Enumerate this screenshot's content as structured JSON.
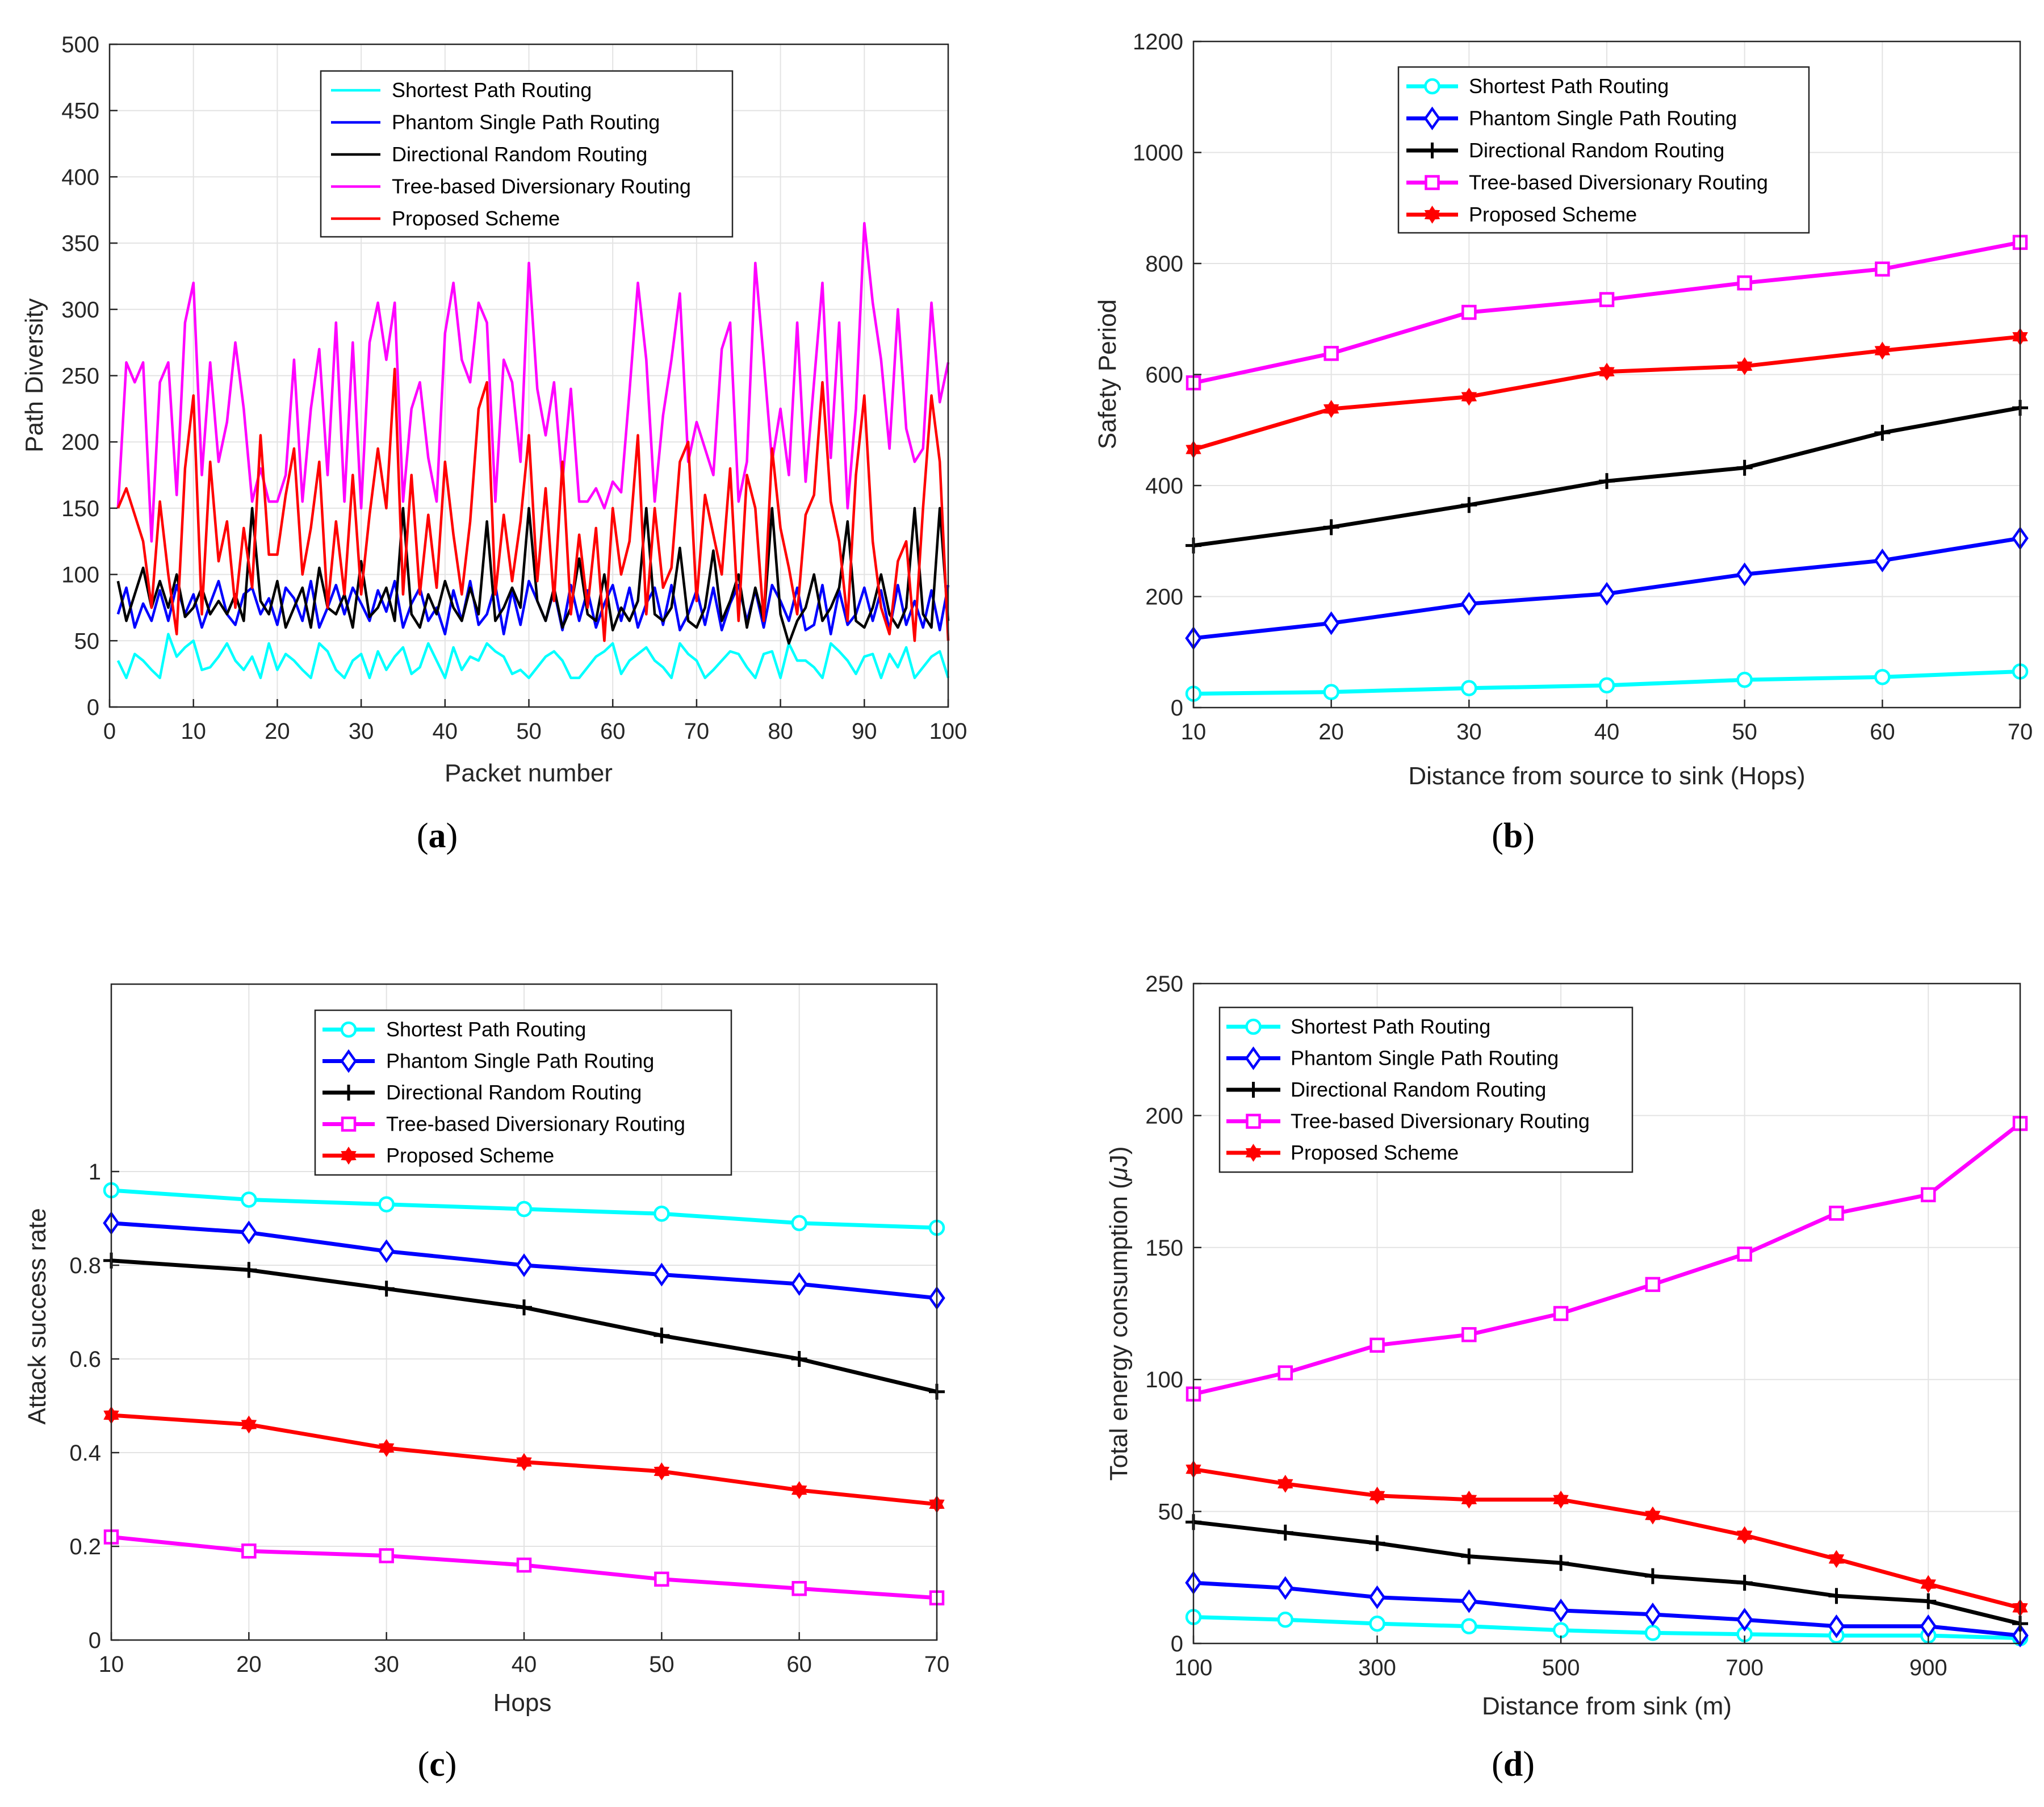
{
  "colors": {
    "shortest": "#00ffff",
    "phantom": "#0000ff",
    "directional": "#000000",
    "tree": "#ff00ff",
    "proposed": "#ff0000"
  },
  "chart_data": [
    {
      "id": "a",
      "type": "line",
      "caption_letter": "a",
      "xlabel": "Packet number",
      "ylabel": "Path Diversity",
      "xlim": [
        0,
        100
      ],
      "ylim": [
        0,
        500
      ],
      "xticks": [
        0,
        10,
        20,
        30,
        40,
        50,
        60,
        70,
        80,
        90,
        100
      ],
      "yticks": [
        0,
        50,
        100,
        150,
        200,
        250,
        300,
        350,
        400,
        450,
        500
      ],
      "legend": "top-center",
      "x": [
        1,
        2,
        3,
        4,
        5,
        6,
        7,
        8,
        9,
        10,
        11,
        12,
        13,
        14,
        15,
        16,
        17,
        18,
        19,
        20,
        21,
        22,
        23,
        24,
        25,
        26,
        27,
        28,
        29,
        30,
        31,
        32,
        33,
        34,
        35,
        36,
        37,
        38,
        39,
        40,
        41,
        42,
        43,
        44,
        45,
        46,
        47,
        48,
        49,
        50,
        51,
        52,
        53,
        54,
        55,
        56,
        57,
        58,
        59,
        60,
        61,
        62,
        63,
        64,
        65,
        66,
        67,
        68,
        69,
        70,
        71,
        72,
        73,
        74,
        75,
        76,
        77,
        78,
        79,
        80,
        81,
        82,
        83,
        84,
        85,
        86,
        87,
        88,
        89,
        90,
        91,
        92,
        93,
        94,
        95,
        96,
        97,
        98,
        99,
        100
      ],
      "series": [
        {
          "name": "Shortest Path Routing",
          "key": "shortest",
          "marker": "none",
          "values": [
            35,
            22,
            40,
            35,
            28,
            22,
            55,
            38,
            45,
            50,
            28,
            30,
            38,
            48,
            35,
            28,
            38,
            22,
            48,
            28,
            40,
            35,
            28,
            22,
            48,
            42,
            28,
            22,
            35,
            40,
            22,
            42,
            28,
            38,
            45,
            25,
            30,
            48,
            35,
            22,
            45,
            28,
            38,
            35,
            48,
            42,
            38,
            25,
            28,
            22,
            30,
            38,
            42,
            35,
            22,
            22,
            30,
            38,
            42,
            48,
            25,
            35,
            40,
            45,
            35,
            30,
            22,
            48,
            40,
            35,
            22,
            28,
            35,
            42,
            40,
            30,
            22,
            40,
            42,
            22,
            48,
            35,
            35,
            30,
            22,
            48,
            42,
            35,
            25,
            38,
            40,
            22,
            40,
            30,
            45,
            22,
            30,
            38,
            42,
            22
          ]
        },
        {
          "name": "Phantom Single Path Routing",
          "key": "phantom",
          "marker": "none",
          "values": [
            70,
            90,
            60,
            78,
            65,
            88,
            65,
            92,
            70,
            85,
            60,
            78,
            95,
            70,
            62,
            85,
            90,
            70,
            82,
            62,
            90,
            82,
            65,
            95,
            60,
            75,
            92,
            70,
            90,
            78,
            65,
            88,
            72,
            95,
            60,
            78,
            90,
            65,
            75,
            55,
            88,
            65,
            95,
            62,
            70,
            92,
            55,
            88,
            62,
            95,
            80,
            65,
            88,
            58,
            92,
            65,
            88,
            60,
            78,
            92,
            65,
            90,
            60,
            78,
            90,
            62,
            92,
            58,
            70,
            88,
            62,
            90,
            58,
            78,
            92,
            65,
            88,
            60,
            92,
            80,
            65,
            90,
            58,
            62,
            92,
            55,
            88,
            62,
            70,
            90,
            65,
            88,
            58,
            92,
            62,
            80,
            60,
            88,
            58,
            92
          ]
        },
        {
          "name": "Directional Random Routing",
          "key": "directional",
          "marker": "none",
          "values": [
            95,
            65,
            85,
            105,
            75,
            95,
            75,
            100,
            68,
            75,
            90,
            70,
            80,
            70,
            85,
            65,
            150,
            80,
            70,
            95,
            60,
            75,
            90,
            60,
            105,
            75,
            70,
            85,
            60,
            110,
            68,
            75,
            90,
            65,
            150,
            70,
            60,
            85,
            70,
            95,
            75,
            65,
            90,
            70,
            140,
            65,
            75,
            90,
            75,
            150,
            80,
            65,
            90,
            60,
            75,
            112,
            70,
            65,
            100,
            58,
            75,
            65,
            80,
            150,
            70,
            65,
            75,
            120,
            65,
            60,
            75,
            118,
            65,
            80,
            100,
            60,
            90,
            65,
            150,
            70,
            48,
            65,
            75,
            100,
            65,
            75,
            90,
            140,
            65,
            60,
            75,
            100,
            70,
            60,
            75,
            150,
            70,
            60,
            150,
            65
          ]
        },
        {
          "name": "Tree-based Diversionary Routing",
          "key": "tree",
          "marker": "none",
          "values": [
            150,
            260,
            245,
            260,
            125,
            245,
            260,
            160,
            290,
            320,
            175,
            260,
            185,
            215,
            275,
            225,
            155,
            180,
            155,
            155,
            175,
            262,
            155,
            225,
            270,
            175,
            290,
            155,
            275,
            150,
            275,
            305,
            262,
            305,
            155,
            225,
            245,
            188,
            155,
            282,
            320,
            262,
            245,
            305,
            290,
            155,
            262,
            245,
            185,
            335,
            240,
            205,
            245,
            170,
            240,
            155,
            155,
            165,
            150,
            170,
            162,
            238,
            320,
            262,
            155,
            220,
            262,
            312,
            185,
            215,
            195,
            175,
            270,
            290,
            155,
            185,
            335,
            262,
            185,
            225,
            175,
            290,
            170,
            245,
            320,
            188,
            290,
            150,
            225,
            365,
            305,
            262,
            195,
            300,
            210,
            185,
            195,
            305,
            230,
            260
          ]
        },
        {
          "name": "Proposed Scheme",
          "key": "proposed",
          "marker": "none",
          "values": [
            150,
            165,
            145,
            125,
            75,
            155,
            100,
            55,
            180,
            235,
            70,
            185,
            110,
            140,
            75,
            135,
            90,
            205,
            115,
            115,
            160,
            195,
            100,
            135,
            185,
            75,
            140,
            85,
            175,
            85,
            145,
            195,
            150,
            255,
            85,
            175,
            85,
            145,
            90,
            185,
            130,
            85,
            140,
            225,
            245,
            85,
            145,
            95,
            140,
            205,
            95,
            165,
            80,
            185,
            70,
            130,
            75,
            135,
            50,
            150,
            100,
            125,
            205,
            70,
            150,
            90,
            105,
            185,
            200,
            80,
            160,
            130,
            100,
            180,
            65,
            175,
            150,
            65,
            195,
            135,
            105,
            70,
            145,
            160,
            245,
            155,
            125,
            65,
            175,
            235,
            125,
            75,
            55,
            110,
            125,
            50,
            150,
            235,
            185,
            50
          ]
        }
      ]
    },
    {
      "id": "b",
      "type": "line",
      "caption_letter": "b",
      "xlabel": "Distance from source to sink (Hops)",
      "ylabel": "Safety Period",
      "xlim": [
        10,
        70
      ],
      "ylim": [
        0,
        1200
      ],
      "xticks": [
        10,
        20,
        30,
        40,
        50,
        60,
        70
      ],
      "yticks": [
        0,
        200,
        400,
        600,
        800,
        1000,
        1200
      ],
      "legend": "top-left",
      "x": [
        10,
        20,
        30,
        40,
        50,
        60,
        70
      ],
      "series": [
        {
          "name": "Shortest Path Routing",
          "key": "shortest",
          "marker": "circle",
          "values": [
            25,
            28,
            35,
            40,
            50,
            55,
            65
          ]
        },
        {
          "name": "Phantom Single Path Routing",
          "key": "phantom",
          "marker": "diamond",
          "values": [
            125,
            152,
            187,
            205,
            240,
            265,
            305
          ]
        },
        {
          "name": "Directional Random Routing",
          "key": "directional",
          "marker": "plus",
          "values": [
            292,
            325,
            365,
            408,
            432,
            495,
            540
          ]
        },
        {
          "name": "Tree-based Diversionary Routing",
          "key": "tree",
          "marker": "square",
          "values": [
            585,
            638,
            712,
            735,
            765,
            790,
            838
          ]
        },
        {
          "name": "Proposed Scheme",
          "key": "proposed",
          "marker": "hexagram",
          "values": [
            465,
            538,
            560,
            605,
            615,
            643,
            668
          ]
        }
      ]
    },
    {
      "id": "c",
      "type": "line",
      "caption_letter": "c",
      "xlabel": "Hops",
      "ylabel": "Attack success rate",
      "xlim": [
        10,
        70
      ],
      "ylim": [
        0,
        1.4
      ],
      "xticks": [
        10,
        20,
        30,
        40,
        50,
        60,
        70
      ],
      "yticks": [
        0,
        0.2,
        0.4,
        0.6,
        0.8,
        1
      ],
      "legend": "top-center",
      "x": [
        10,
        20,
        30,
        40,
        50,
        60,
        70
      ],
      "series": [
        {
          "name": "Shortest Path Routing",
          "key": "shortest",
          "marker": "circle",
          "values": [
            0.96,
            0.94,
            0.93,
            0.92,
            0.91,
            0.89,
            0.88
          ]
        },
        {
          "name": "Phantom Single Path Routing",
          "key": "phantom",
          "marker": "diamond",
          "values": [
            0.89,
            0.87,
            0.83,
            0.8,
            0.78,
            0.76,
            0.73
          ]
        },
        {
          "name": "Directional Random Routing",
          "key": "directional",
          "marker": "plus",
          "values": [
            0.81,
            0.79,
            0.75,
            0.71,
            0.65,
            0.6,
            0.53
          ]
        },
        {
          "name": "Tree-based Diversionary Routing",
          "key": "tree",
          "marker": "square",
          "values": [
            0.22,
            0.19,
            0.18,
            0.16,
            0.13,
            0.11,
            0.09
          ]
        },
        {
          "name": "Proposed Scheme",
          "key": "proposed",
          "marker": "hexagram",
          "values": [
            0.48,
            0.46,
            0.41,
            0.38,
            0.36,
            0.32,
            0.29
          ]
        }
      ]
    },
    {
      "id": "d",
      "type": "line",
      "caption_letter": "d",
      "xlabel": "Distance from sink (m)",
      "ylabel_pre": "Total energy consumption (",
      "ylabel_mu": "μ",
      "ylabel_post": "J)",
      "xlim": [
        100,
        1000
      ],
      "ylim": [
        0,
        250
      ],
      "xticks": [
        100,
        300,
        500,
        700,
        900
      ],
      "yticks": [
        0,
        50,
        100,
        150,
        200,
        250
      ],
      "legend": "top-left",
      "x": [
        100,
        200,
        300,
        400,
        500,
        600,
        700,
        800,
        900,
        1000
      ],
      "series": [
        {
          "name": "Shortest Path Routing",
          "key": "shortest",
          "marker": "circle",
          "values": [
            10,
            9,
            7.5,
            6.5,
            5,
            4,
            3.5,
            3,
            3,
            2
          ]
        },
        {
          "name": "Phantom Single Path Routing",
          "key": "phantom",
          "marker": "diamond",
          "values": [
            23,
            21,
            17.5,
            16,
            12.5,
            11,
            9,
            6.5,
            6.5,
            3
          ]
        },
        {
          "name": "Directional Random Routing",
          "key": "directional",
          "marker": "plus",
          "values": [
            46,
            42,
            38,
            33,
            30.5,
            25.5,
            23,
            18,
            16,
            7.5
          ]
        },
        {
          "name": "Tree-based Diversionary Routing",
          "key": "tree",
          "marker": "square",
          "values": [
            94.5,
            102.5,
            113,
            117,
            125,
            136,
            147.5,
            163,
            170,
            197
          ]
        },
        {
          "name": "Proposed Scheme",
          "key": "proposed",
          "marker": "hexagram",
          "values": [
            66,
            60.5,
            56,
            54.5,
            54.5,
            48.5,
            41,
            32,
            22.5,
            13.5
          ]
        }
      ]
    }
  ]
}
